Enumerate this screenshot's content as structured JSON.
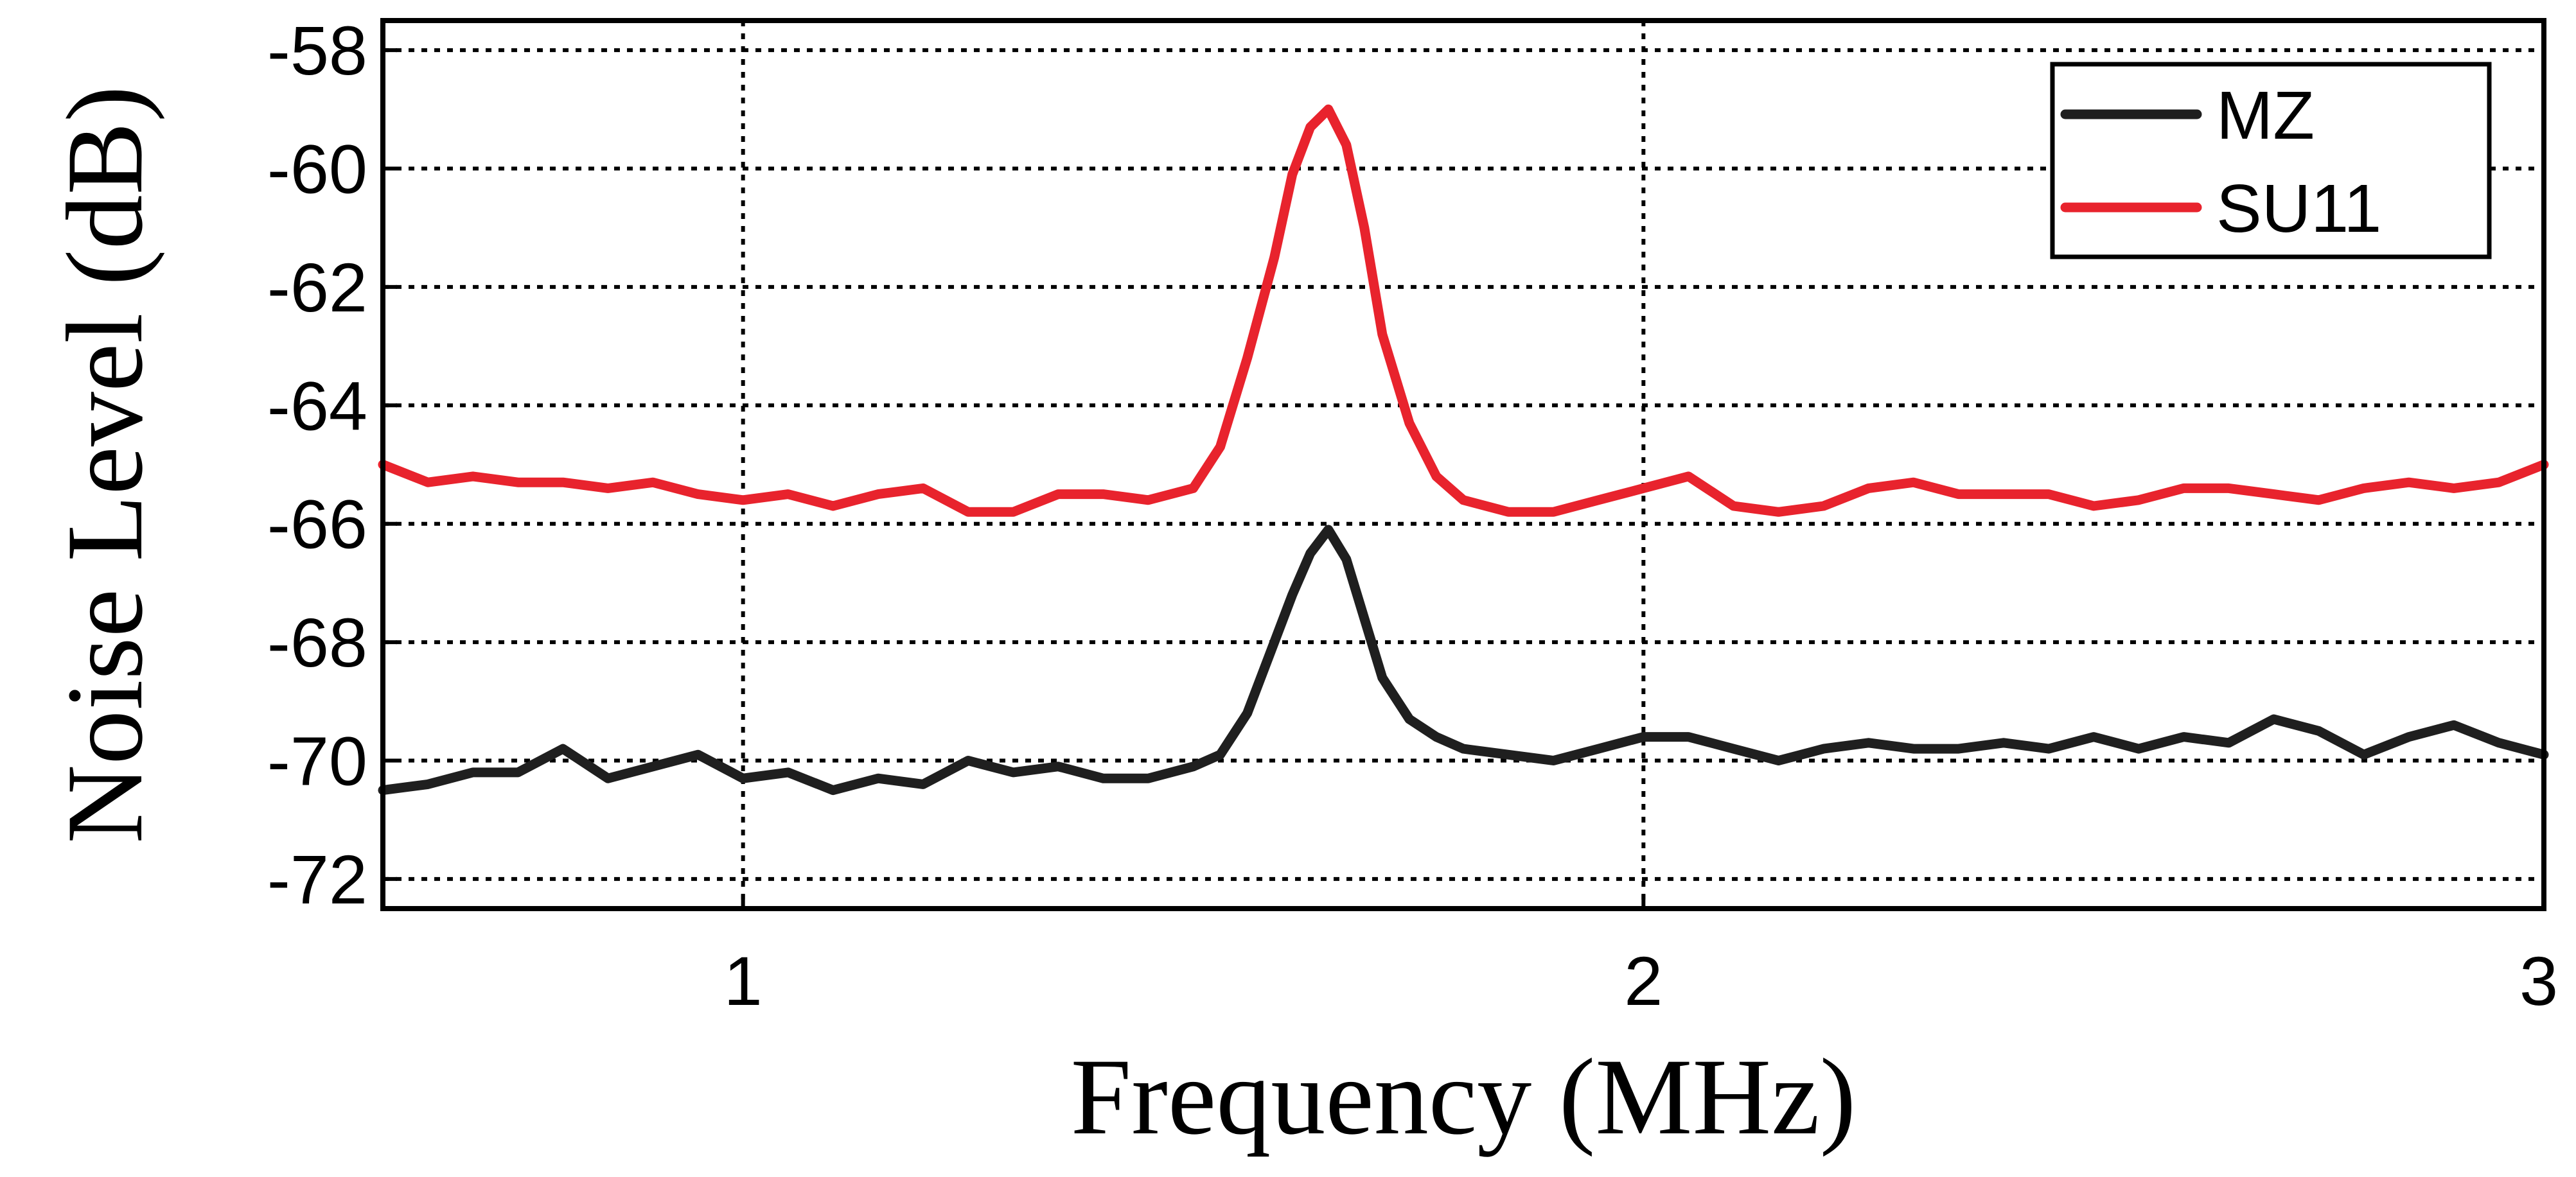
{
  "chart_data": {
    "type": "line",
    "title": "",
    "xlabel": "Frequency (MHz)",
    "ylabel": "Noise Level (dB)",
    "xlim": [
      0.6,
      3.0
    ],
    "ylim": [
      -72.5,
      -57.5
    ],
    "xticks": [
      1,
      2,
      3
    ],
    "xtick_labels": [
      "1",
      "2",
      "3"
    ],
    "yticks": [
      -58,
      -60,
      -62,
      -64,
      -66,
      -68,
      -70,
      -72
    ],
    "ytick_labels": [
      "-58",
      "-60",
      "-62",
      "-64",
      "-66",
      "-68",
      "-70",
      "-72"
    ],
    "grid": true,
    "legend_position": "top-right",
    "series": [
      {
        "name": "MZ",
        "color": "#1f1f1f",
        "x": [
          0.6,
          0.65,
          0.7,
          0.75,
          0.8,
          0.85,
          0.9,
          0.95,
          1.0,
          1.05,
          1.1,
          1.15,
          1.2,
          1.25,
          1.3,
          1.35,
          1.4,
          1.45,
          1.5,
          1.53,
          1.56,
          1.59,
          1.61,
          1.63,
          1.65,
          1.67,
          1.69,
          1.71,
          1.74,
          1.77,
          1.8,
          1.85,
          1.9,
          1.95,
          2.0,
          2.05,
          2.1,
          2.15,
          2.2,
          2.25,
          2.3,
          2.35,
          2.4,
          2.45,
          2.5,
          2.55,
          2.6,
          2.65,
          2.7,
          2.75,
          2.8,
          2.85,
          2.9,
          2.95,
          3.0
        ],
        "y": [
          -70.5,
          -70.4,
          -70.2,
          -70.2,
          -69.8,
          -70.3,
          -70.1,
          -69.9,
          -70.3,
          -70.2,
          -70.5,
          -70.3,
          -70.4,
          -70.0,
          -70.2,
          -70.1,
          -70.3,
          -70.3,
          -70.1,
          -69.9,
          -69.2,
          -68.0,
          -67.2,
          -66.5,
          -66.1,
          -66.6,
          -67.6,
          -68.6,
          -69.3,
          -69.6,
          -69.8,
          -69.9,
          -70.0,
          -69.8,
          -69.6,
          -69.6,
          -69.8,
          -70.0,
          -69.8,
          -69.7,
          -69.8,
          -69.8,
          -69.7,
          -69.8,
          -69.6,
          -69.8,
          -69.6,
          -69.7,
          -69.3,
          -69.5,
          -69.9,
          -69.6,
          -69.4,
          -69.7,
          -69.9
        ]
      },
      {
        "name": "SU11",
        "color": "#e8232d",
        "x": [
          0.6,
          0.65,
          0.7,
          0.75,
          0.8,
          0.85,
          0.9,
          0.95,
          1.0,
          1.05,
          1.1,
          1.15,
          1.2,
          1.25,
          1.3,
          1.35,
          1.4,
          1.45,
          1.5,
          1.53,
          1.56,
          1.59,
          1.61,
          1.63,
          1.65,
          1.67,
          1.69,
          1.71,
          1.74,
          1.77,
          1.8,
          1.85,
          1.9,
          1.95,
          2.0,
          2.05,
          2.1,
          2.15,
          2.2,
          2.25,
          2.3,
          2.35,
          2.4,
          2.45,
          2.5,
          2.55,
          2.6,
          2.65,
          2.7,
          2.75,
          2.8,
          2.85,
          2.9,
          2.95,
          3.0
        ],
        "y": [
          -65.0,
          -65.3,
          -65.2,
          -65.3,
          -65.3,
          -65.4,
          -65.3,
          -65.5,
          -65.6,
          -65.5,
          -65.7,
          -65.5,
          -65.4,
          -65.8,
          -65.8,
          -65.5,
          -65.5,
          -65.6,
          -65.4,
          -64.7,
          -63.2,
          -61.5,
          -60.1,
          -59.3,
          -59.0,
          -59.6,
          -61.0,
          -62.8,
          -64.3,
          -65.2,
          -65.6,
          -65.8,
          -65.8,
          -65.6,
          -65.4,
          -65.2,
          -65.7,
          -65.8,
          -65.7,
          -65.4,
          -65.3,
          -65.5,
          -65.5,
          -65.5,
          -65.7,
          -65.6,
          -65.4,
          -65.4,
          -65.5,
          -65.6,
          -65.4,
          -65.3,
          -65.4,
          -65.3,
          -65.0
        ]
      }
    ]
  }
}
